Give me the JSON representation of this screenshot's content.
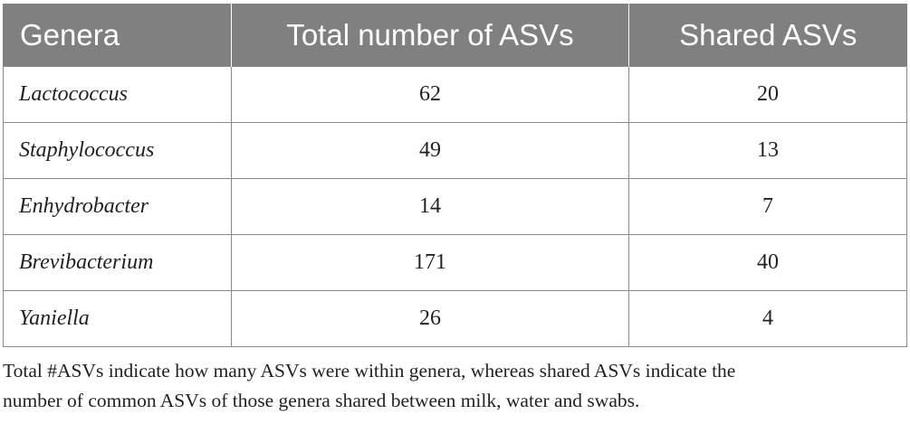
{
  "table": {
    "headers": [
      "Genera",
      "Total number of ASVs",
      "Shared ASVs"
    ],
    "rows": [
      {
        "genus": "Lactococcus",
        "total": "62",
        "shared": "20"
      },
      {
        "genus": "Staphylococcus",
        "total": "49",
        "shared": "13"
      },
      {
        "genus": "Enhydrobacter",
        "total": "14",
        "shared": "7"
      },
      {
        "genus": "Brevibacterium",
        "total": "171",
        "shared": "40"
      },
      {
        "genus": "Yaniella",
        "total": "26",
        "shared": "4"
      }
    ]
  },
  "footnote": {
    "line1": "Total #ASVs indicate how many ASVs were within genera, whereas shared ASVs indicate the",
    "line2": "number of common ASVs of those genera shared between milk, water and swabs."
  },
  "colors": {
    "header_background": "#808080",
    "header_text": "#ffffff",
    "body_text": "#231f20",
    "border": "#8a8a8a"
  }
}
